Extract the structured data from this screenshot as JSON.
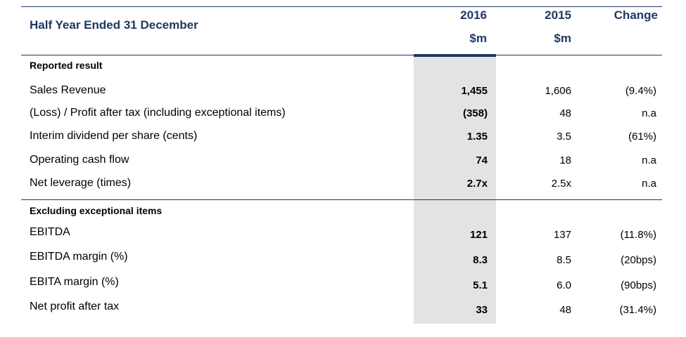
{
  "header": {
    "title": "Half Year Ended 31 December",
    "col_2016": "2016",
    "col_2016_unit": "$m",
    "col_2015": "2015",
    "col_2015_unit": "$m",
    "col_change": "Change"
  },
  "sections": [
    {
      "title": "Reported result",
      "rows": [
        {
          "label": "Sales Revenue",
          "v2016": "1,455",
          "v2015": "1,606",
          "change": "(9.4%)"
        },
        {
          "label": "(Loss) / Profit after tax (including exceptional items)",
          "v2016": "(358)",
          "v2015": "48",
          "change": "n.a"
        },
        {
          "label": "Interim dividend per share (cents)",
          "v2016": "1.35",
          "v2015": "3.5",
          "change": "(61%)"
        },
        {
          "label": "Operating cash flow",
          "v2016": "74",
          "v2015": "18",
          "change": "n.a"
        },
        {
          "label": "Net leverage (times)",
          "v2016": "2.7x",
          "v2015": "2.5x",
          "change": "n.a"
        }
      ]
    },
    {
      "title": "Excluding exceptional items",
      "rows": [
        {
          "label": "EBITDA",
          "v2016": "121",
          "v2015": "137",
          "change": "(11.8%)"
        },
        {
          "label": "EBITDA margin (%)",
          "v2016": "8.3",
          "v2015": "8.5",
          "change": "(20bps)"
        },
        {
          "label": "EBITA margin (%)",
          "v2016": "5.1",
          "v2015": "6.0",
          "change": "(90bps)"
        },
        {
          "label": "Net profit after tax",
          "v2016": "33",
          "v2015": "48",
          "change": "(31.4%)"
        }
      ]
    }
  ]
}
